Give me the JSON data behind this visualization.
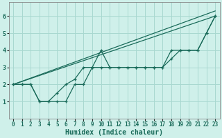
{
  "xlabel": "Humidex (Indice chaleur)",
  "bg_color": "#cff0ea",
  "grid_color": "#a8d8d0",
  "line_color": "#1a6b5a",
  "xlim": [
    -0.5,
    23.5
  ],
  "ylim": [
    0,
    6.8
  ],
  "xticks": [
    0,
    1,
    2,
    3,
    4,
    5,
    6,
    7,
    8,
    9,
    10,
    11,
    12,
    13,
    14,
    15,
    16,
    17,
    18,
    19,
    20,
    21,
    22,
    23
  ],
  "yticks": [
    1,
    2,
    3,
    4,
    5,
    6
  ],
  "series1_x": [
    0,
    1,
    2,
    3,
    4,
    5,
    6,
    7,
    8,
    9,
    10,
    11,
    12,
    13,
    14,
    15,
    16,
    17,
    18,
    19,
    20,
    21,
    22,
    23
  ],
  "series1_y": [
    2.0,
    2.0,
    2.0,
    1.0,
    1.0,
    1.0,
    1.0,
    2.0,
    2.0,
    3.0,
    4.0,
    3.0,
    3.0,
    3.0,
    3.0,
    3.0,
    3.0,
    3.0,
    4.0,
    4.0,
    4.0,
    4.0,
    5.0,
    6.0
  ],
  "series2_x": [
    0,
    1,
    2,
    3,
    4,
    5,
    6,
    7,
    8,
    9,
    10,
    11,
    12,
    13,
    14,
    15,
    16,
    17,
    18,
    19,
    20,
    21,
    22,
    23
  ],
  "series2_y": [
    2.0,
    2.0,
    2.0,
    1.0,
    1.0,
    1.5,
    2.0,
    2.3,
    3.0,
    3.0,
    3.0,
    3.0,
    3.0,
    3.0,
    3.0,
    3.0,
    3.0,
    3.0,
    3.5,
    4.0,
    4.0,
    4.0,
    5.0,
    6.0
  ],
  "series3_x": [
    0,
    23
  ],
  "series3_y": [
    2.0,
    6.0
  ],
  "series4_x": [
    0,
    23
  ],
  "series4_y": [
    2.0,
    6.3
  ],
  "tick_fontsize": 6,
  "xlabel_fontsize": 7
}
